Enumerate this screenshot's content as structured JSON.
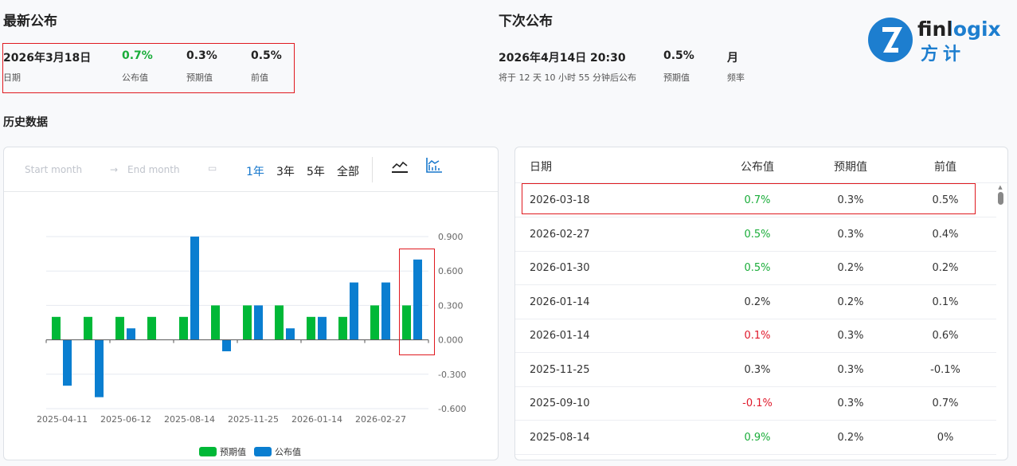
{
  "latest": {
    "title": "最新公布",
    "date": "2026年3月18日",
    "date_label": "日期",
    "actual": "0.7%",
    "actual_label": "公布值",
    "forecast": "0.3%",
    "forecast_label": "预期值",
    "previous": "0.5%",
    "previous_label": "前值"
  },
  "next": {
    "title": "下次公布",
    "datetime": "2026年4月14日 20:30",
    "countdown": "将于 12 天 10 小时 55 分钟后公布",
    "forecast": "0.5%",
    "forecast_label": "预期值",
    "frequency": "月",
    "frequency_label": "频率"
  },
  "logo": {
    "text_en": "finlogix",
    "text_cn": "方计"
  },
  "history_title": "历史数据",
  "toolbar": {
    "start_placeholder": "Start month",
    "end_placeholder": "End month",
    "ranges": [
      "1年",
      "3年",
      "5年",
      "全部"
    ],
    "active_range": "1年",
    "line_icon": "line-chart-icon",
    "bar_icon": "bar-chart-icon"
  },
  "colors": {
    "forecast": "#00b837",
    "actual": "#0a7ed0",
    "positive": "#1aad3a",
    "negative": "#e0192b",
    "accent": "#1677cc"
  },
  "chart_data": {
    "type": "bar",
    "categories": [
      "",
      "",
      "",
      "",
      "",
      "",
      "",
      "",
      "",
      "",
      "",
      ""
    ],
    "x_tick_labels": [
      "2025-04-11",
      "2025-06-12",
      "2025-08-14",
      "2025-11-25",
      "2026-01-14",
      "2026-02-27"
    ],
    "series": [
      {
        "name": "预期值",
        "values": [
          0.2,
          0.2,
          0.2,
          0.2,
          0.2,
          0.3,
          0.3,
          0.3,
          0.2,
          0.2,
          0.3,
          0.3
        ]
      },
      {
        "name": "公布值",
        "values": [
          -0.4,
          -0.5,
          0.1,
          0,
          0.9,
          -0.1,
          0.3,
          0.1,
          0.2,
          0.5,
          0.5,
          0.7
        ]
      }
    ],
    "y_ticks": [
      "0.900",
      "0.600",
      "0.300",
      "0.000",
      "-0.300",
      "-0.600"
    ],
    "ylim": [
      -0.6,
      0.9
    ],
    "grid": true,
    "legend": "bottom"
  },
  "table": {
    "headers": [
      "日期",
      "公布值",
      "预期值",
      "前值"
    ],
    "rows": [
      {
        "date": "2026-03-18",
        "actual": "0.7%",
        "forecast": "0.3%",
        "previous": "0.5%",
        "trend": "up"
      },
      {
        "date": "2026-02-27",
        "actual": "0.5%",
        "forecast": "0.3%",
        "previous": "0.4%",
        "trend": "up"
      },
      {
        "date": "2026-01-30",
        "actual": "0.5%",
        "forecast": "0.2%",
        "previous": "0.2%",
        "trend": "up"
      },
      {
        "date": "2026-01-14",
        "actual": "0.2%",
        "forecast": "0.2%",
        "previous": "0.1%",
        "trend": "flat"
      },
      {
        "date": "2026-01-14",
        "actual": "0.1%",
        "forecast": "0.3%",
        "previous": "0.6%",
        "trend": "down"
      },
      {
        "date": "2025-11-25",
        "actual": "0.3%",
        "forecast": "0.3%",
        "previous": "-0.1%",
        "trend": "flat"
      },
      {
        "date": "2025-09-10",
        "actual": "-0.1%",
        "forecast": "0.3%",
        "previous": "0.7%",
        "trend": "down"
      },
      {
        "date": "2025-08-14",
        "actual": "0.9%",
        "forecast": "0.2%",
        "previous": "0%",
        "trend": "up"
      }
    ]
  }
}
